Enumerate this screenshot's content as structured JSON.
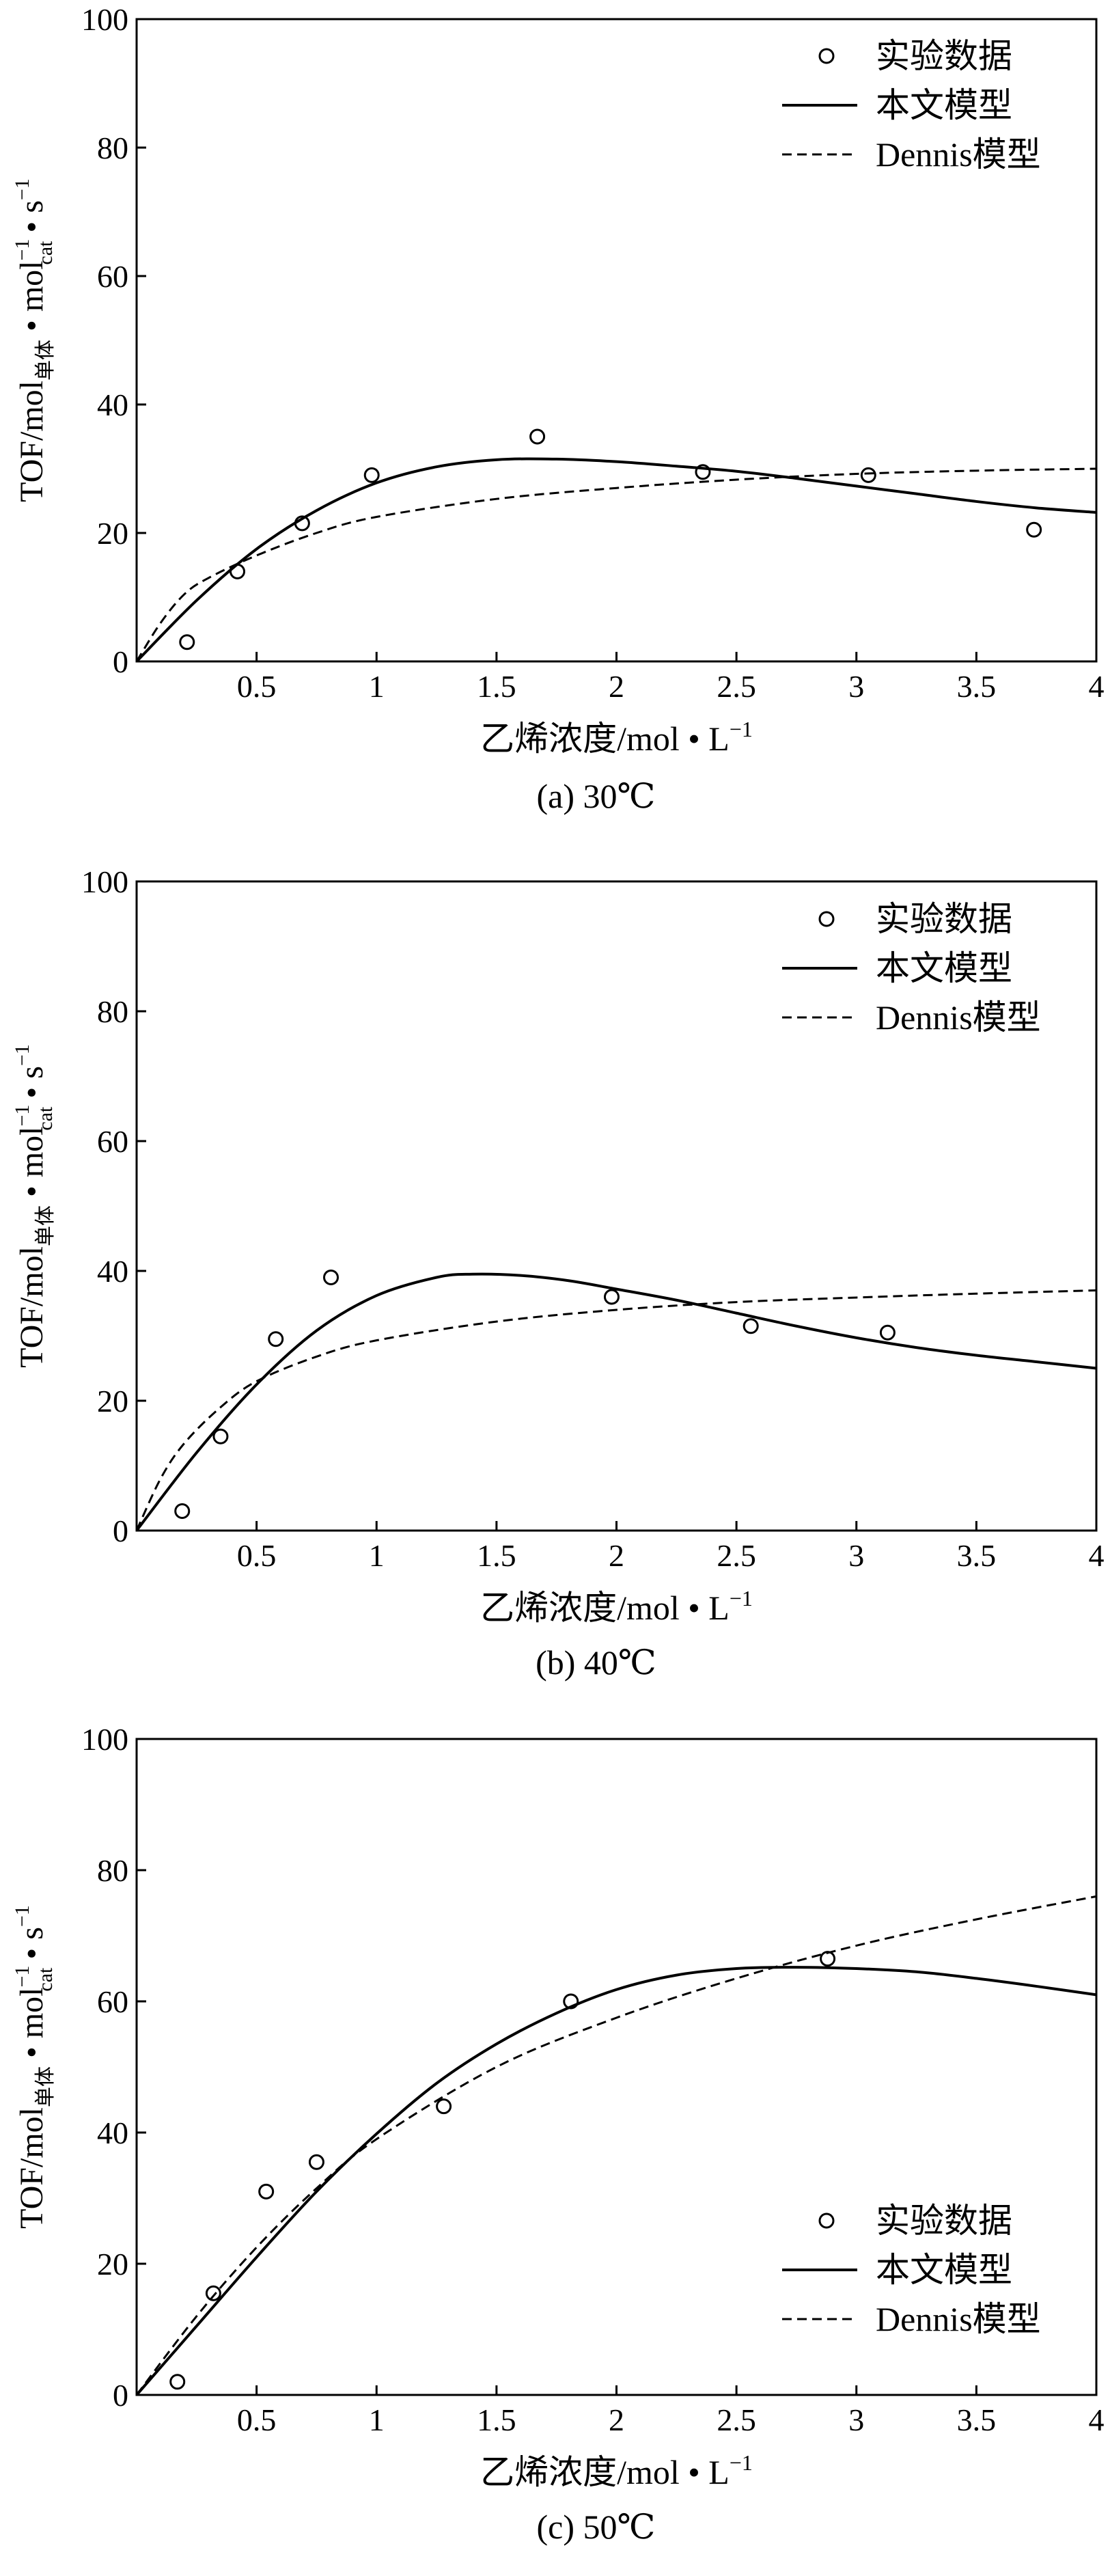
{
  "labels": {
    "y_main": "TOF/mol",
    "y_sub1": "单体",
    "y_bullet1": "•",
    "y_mol": "mol",
    "y_sup1": "−1",
    "y_sub2": "cat",
    "y_bullet2": "•",
    "y_s": "s",
    "y_sup2": "−1",
    "x_main": "乙烯浓度/mol • L",
    "x_sup": "−1",
    "legend_points": "实验数据",
    "legend_model": "本文模型",
    "legend_dennis": "Dennis模型"
  },
  "chart_data": [
    {
      "type": "line",
      "caption": "(a) 30℃",
      "legend_position": "top-right",
      "xlim": [
        0,
        4
      ],
      "ylim": [
        0,
        100
      ],
      "x_ticks": [
        0.5,
        1,
        1.5,
        2,
        2.5,
        3,
        3.5,
        4
      ],
      "x_tick_labels": [
        "0.5",
        "1",
        "1.5",
        "2",
        "2.5",
        "3",
        "3.5",
        "4"
      ],
      "y_ticks": [
        0,
        20,
        40,
        60,
        80,
        100
      ],
      "y_tick_labels": [
        "0",
        "20",
        "40",
        "60",
        "80",
        "100"
      ],
      "series": [
        {
          "name": "实验数据",
          "style": "points",
          "x": [
            0.21,
            0.42,
            0.69,
            0.98,
            1.67,
            2.36,
            3.05,
            3.74
          ],
          "y": [
            3,
            14,
            21.5,
            29,
            35,
            29.5,
            29,
            20.5
          ]
        },
        {
          "name": "本文模型",
          "style": "solid",
          "x": [
            0,
            0.25,
            0.5,
            0.75,
            1,
            1.25,
            1.5,
            1.75,
            2,
            2.25,
            2.5,
            2.75,
            3,
            3.25,
            3.5,
            3.75,
            4
          ],
          "y": [
            0,
            9.5,
            17.5,
            23.5,
            27.8,
            30.3,
            31.4,
            31.5,
            31.1,
            30.4,
            29.6,
            28.5,
            27.3,
            26.1,
            24.9,
            23.9,
            23.2
          ]
        },
        {
          "name": "Dennis模型",
          "style": "dashed",
          "x": [
            0,
            0.1,
            0.2,
            0.3,
            0.5,
            0.75,
            1,
            1.5,
            2,
            2.5,
            3,
            3.5,
            4
          ],
          "y": [
            0,
            6,
            10.5,
            13,
            16.5,
            20,
            22.5,
            25.3,
            27,
            28.3,
            29.2,
            29.7,
            30
          ]
        }
      ]
    },
    {
      "type": "line",
      "caption": "(b) 40℃",
      "legend_position": "top-right",
      "xlim": [
        0,
        4
      ],
      "ylim": [
        0,
        100
      ],
      "x_ticks": [
        0.5,
        1,
        1.5,
        2,
        2.5,
        3,
        3.5,
        4
      ],
      "x_tick_labels": [
        "0.5",
        "1",
        "1.5",
        "2",
        "2.5",
        "3",
        "3.5",
        "4"
      ],
      "y_ticks": [
        0,
        20,
        40,
        60,
        80,
        100
      ],
      "y_tick_labels": [
        "0",
        "20",
        "40",
        "60",
        "80",
        "100"
      ],
      "series": [
        {
          "name": "实验数据",
          "style": "points",
          "x": [
            0.19,
            0.35,
            0.58,
            0.81,
            1.98,
            2.56,
            3.13
          ],
          "y": [
            3,
            14.5,
            29.5,
            39,
            36,
            31.5,
            30.5
          ]
        },
        {
          "name": "本文模型",
          "style": "solid",
          "x": [
            0,
            0.25,
            0.5,
            0.75,
            1,
            1.25,
            1.4,
            1.6,
            1.8,
            2,
            2.25,
            2.5,
            2.75,
            3,
            3.25,
            3.5,
            3.75,
            4
          ],
          "y": [
            0,
            12,
            22.5,
            30.8,
            36.2,
            39,
            39.5,
            39.3,
            38.5,
            37.2,
            35.5,
            33.5,
            31.5,
            29.7,
            28.2,
            27,
            26,
            25
          ]
        },
        {
          "name": "Dennis模型",
          "style": "dashed",
          "x": [
            0,
            0.1,
            0.2,
            0.35,
            0.5,
            0.75,
            1,
            1.5,
            2,
            2.5,
            3,
            3.5,
            4
          ],
          "y": [
            0,
            8,
            13.5,
            19,
            23,
            26.8,
            29.3,
            32.2,
            34,
            35.2,
            35.9,
            36.5,
            37
          ]
        }
      ]
    },
    {
      "type": "line",
      "caption": "(c) 50℃",
      "legend_position": "bottom-right",
      "xlim": [
        0,
        4
      ],
      "ylim": [
        0,
        100
      ],
      "x_ticks": [
        0.5,
        1,
        1.5,
        2,
        2.5,
        3,
        3.5,
        4
      ],
      "x_tick_labels": [
        "0.5",
        "1",
        "1.5",
        "2",
        "2.5",
        "3",
        "3.5",
        "4"
      ],
      "y_ticks": [
        0,
        20,
        40,
        60,
        80,
        100
      ],
      "y_tick_labels": [
        "0",
        "20",
        "40",
        "60",
        "80",
        "100"
      ],
      "series": [
        {
          "name": "实验数据",
          "style": "points",
          "x": [
            0.17,
            0.32,
            0.54,
            0.75,
            1.28,
            1.81,
            2.88
          ],
          "y": [
            2,
            15.5,
            31,
            35.5,
            44,
            60,
            66.5
          ]
        },
        {
          "name": "本文模型",
          "style": "solid",
          "x": [
            0,
            0.25,
            0.5,
            0.75,
            1,
            1.25,
            1.5,
            1.75,
            2,
            2.25,
            2.5,
            2.75,
            3,
            3.25,
            3.5,
            3.75,
            4
          ],
          "y": [
            0,
            10.5,
            21,
            31,
            39.8,
            47.5,
            53.5,
            58.2,
            61.8,
            64,
            65,
            65.2,
            65,
            64.5,
            63.5,
            62.3,
            61
          ]
        },
        {
          "name": "Dennis模型",
          "style": "dashed",
          "x": [
            0,
            0.25,
            0.5,
            0.75,
            1,
            1.5,
            2,
            2.5,
            3,
            3.5,
            4
          ],
          "y": [
            0,
            12,
            22.5,
            31.5,
            39,
            50,
            57.5,
            63.5,
            68.5,
            72.5,
            76
          ]
        }
      ]
    }
  ]
}
